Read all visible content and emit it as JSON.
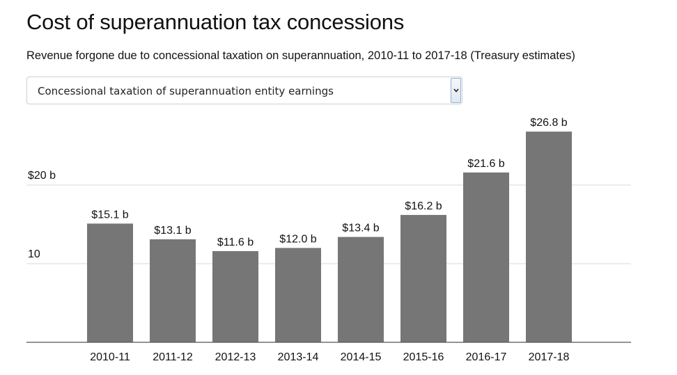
{
  "title": "Cost of superannuation tax concessions",
  "subtitle": "Revenue forgone due to concessional taxation on superannuation, 2010-11 to 2017-18 (Treasury estimates)",
  "selector": {
    "selected": "Concessional taxation of superannuation entity earnings",
    "icon": "chevron-down-icon"
  },
  "chart_data": {
    "type": "bar",
    "categories": [
      "2010-11",
      "2011-12",
      "2012-13",
      "2013-14",
      "2014-15",
      "2015-16",
      "2016-17",
      "2017-18"
    ],
    "values": [
      15.1,
      13.1,
      11.6,
      12.0,
      13.4,
      16.2,
      21.6,
      26.8
    ],
    "data_labels": [
      "$15.1 b",
      "$13.1 b",
      "$11.6 b",
      "$12.0 b",
      "$13.4 b",
      "$16.2 b",
      "$21.6 b",
      "$26.8 b"
    ],
    "y_ticks": [
      {
        "value": 20,
        "label": "$20 b"
      },
      {
        "value": 10,
        "label": "10"
      }
    ],
    "ylim": [
      0,
      28
    ],
    "grid": true,
    "bar_color": "#767676",
    "grid_color": "#d9d9d9",
    "axis_color": "#555555"
  }
}
